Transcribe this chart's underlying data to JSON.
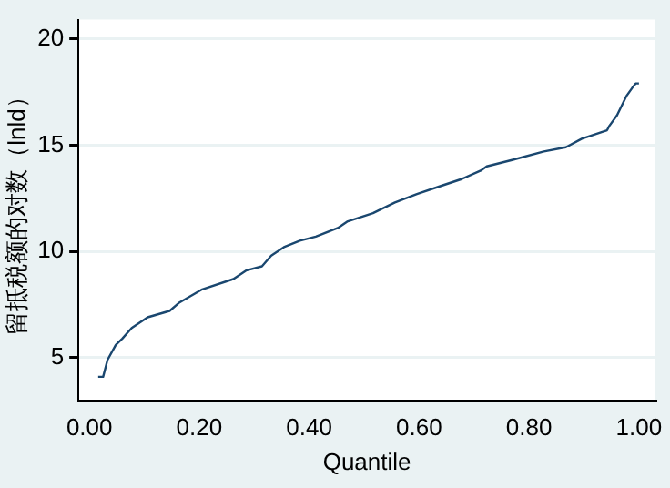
{
  "chart_data": {
    "type": "line",
    "xlabel": "Quantile",
    "ylabel": "留抵税额的对数（lnld）",
    "xlim": [
      -0.02,
      1.03
    ],
    "ylim": [
      3,
      20.9
    ],
    "xticks": [
      {
        "value": 0,
        "label": "0.00"
      },
      {
        "value": 0.2,
        "label": "0.20"
      },
      {
        "value": 0.4,
        "label": "0.40"
      },
      {
        "value": 0.6,
        "label": "0.60"
      },
      {
        "value": 0.8,
        "label": "0.80"
      },
      {
        "value": 1,
        "label": "1.00"
      }
    ],
    "yticks": [
      5,
      10,
      15,
      20
    ],
    "grid": "y",
    "legend": false,
    "marker": "none",
    "line_style": "solid",
    "series": [
      {
        "color": "#1a476f",
        "x": [
          0.016,
          0.025,
          0.033,
          0.048,
          0.06,
          0.077,
          0.106,
          0.146,
          0.164,
          0.204,
          0.262,
          0.285,
          0.314,
          0.331,
          0.354,
          0.383,
          0.412,
          0.452,
          0.469,
          0.516,
          0.556,
          0.596,
          0.642,
          0.677,
          0.712,
          0.723,
          0.769,
          0.827,
          0.867,
          0.896,
          0.942,
          0.946,
          0.96,
          0.977,
          0.988,
          0.994,
          1.0
        ],
        "values": [
          4.1,
          4.1,
          4.9,
          5.6,
          5.9,
          6.4,
          6.9,
          7.2,
          7.6,
          8.2,
          8.7,
          9.1,
          9.3,
          9.8,
          10.2,
          10.5,
          10.7,
          11.1,
          11.4,
          11.8,
          12.3,
          12.7,
          13.1,
          13.4,
          13.8,
          14.0,
          14.3,
          14.7,
          14.9,
          15.3,
          15.7,
          15.9,
          16.4,
          17.3,
          17.7,
          17.9,
          17.9
        ]
      }
    ]
  }
}
